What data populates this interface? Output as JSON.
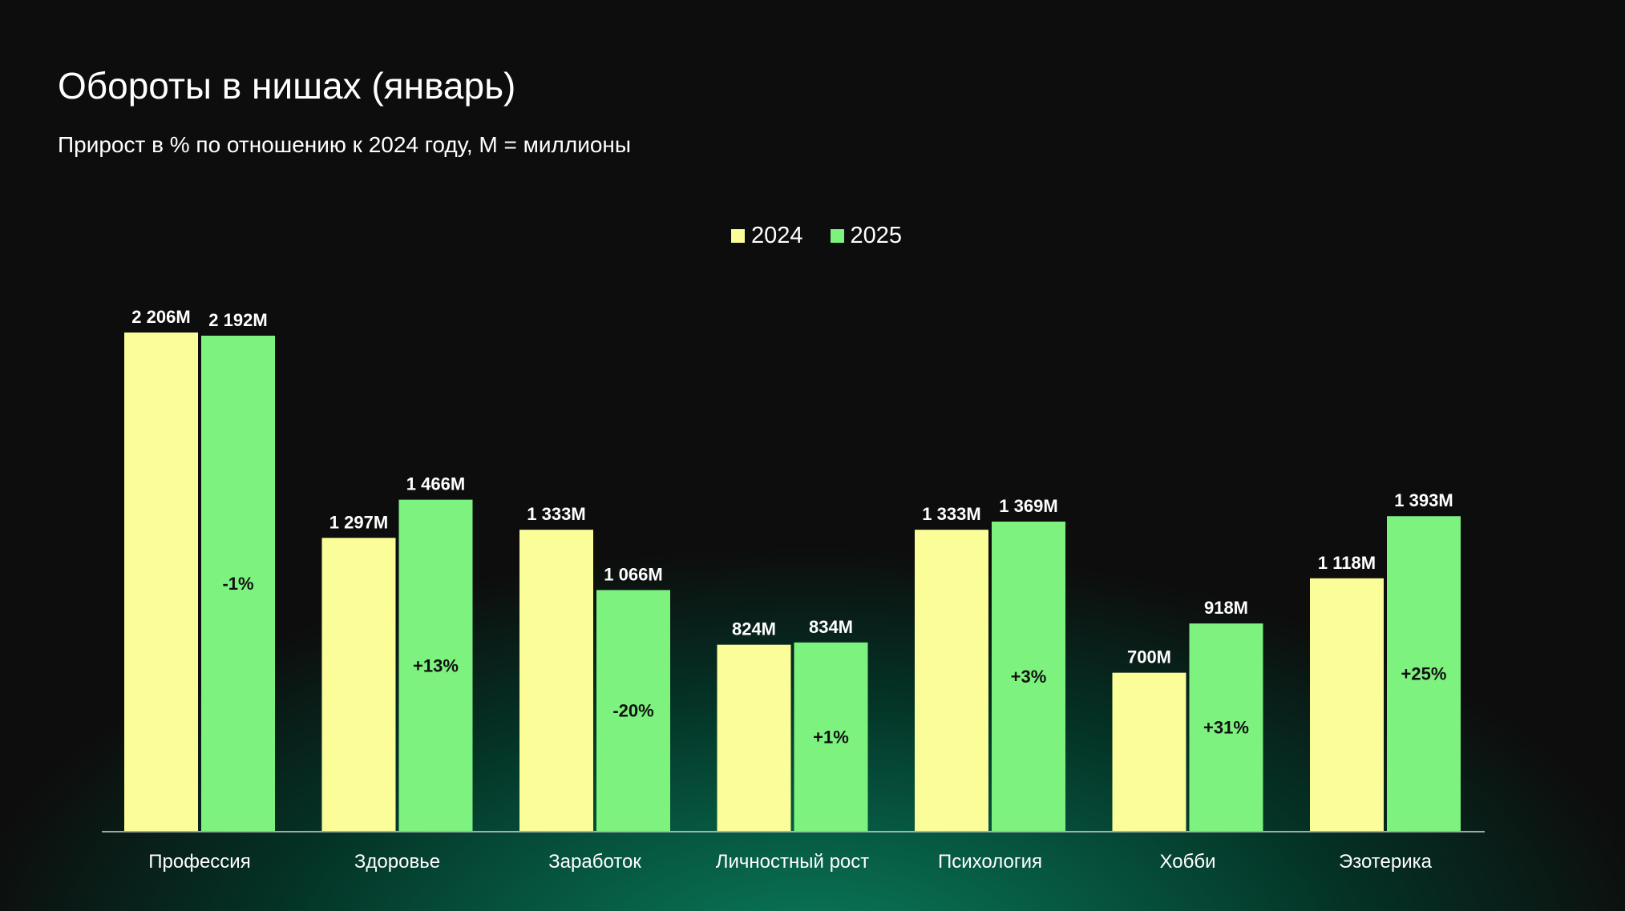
{
  "header": {
    "title": "Обороты в нишах (январь)",
    "subtitle": "Прирост в % по отношению к 2024 году, M = миллионы"
  },
  "colors": {
    "series_2024": "#fbfd98",
    "series_2025": "#7df27f",
    "axis": "#cfd8d3"
  },
  "chart_data": {
    "type": "bar",
    "title": "Обороты в нишах (январь)",
    "subtitle": "Прирост в % по отношению к 2024 году, M = миллионы",
    "unit": "M",
    "categories": [
      "Профессия",
      "Здоровье",
      "Заработок",
      "Личностный рост",
      "Психология",
      "Хобби",
      "Эзотерика"
    ],
    "series": [
      {
        "name": "2024",
        "values": [
          2206,
          1297,
          1333,
          824,
          1333,
          700,
          1118
        ],
        "labels": [
          "2 206M",
          "1 297M",
          "1 333M",
          "824M",
          "1 333M",
          "700M",
          "1 118M"
        ]
      },
      {
        "name": "2025",
        "values": [
          2192,
          1466,
          1066,
          834,
          1369,
          918,
          1393
        ],
        "labels": [
          "2 192M",
          "1 466M",
          "1 066M",
          "834M",
          "1 369M",
          "918M",
          "1 393M"
        ]
      }
    ],
    "growth_labels": [
      "-1%",
      "+13%",
      "-20%",
      "+1%",
      "+3%",
      "+31%",
      "+25%"
    ],
    "legend": [
      "2024",
      "2025"
    ],
    "legend_position": "top-center",
    "ylim": [
      0,
      2206
    ],
    "grid": false,
    "xlabel": "",
    "ylabel": ""
  }
}
